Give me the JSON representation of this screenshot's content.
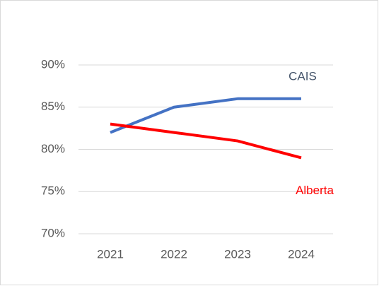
{
  "chart_data": {
    "type": "line",
    "categories": [
      "2021",
      "2022",
      "2023",
      "2024"
    ],
    "series": [
      {
        "name": "CAIS",
        "color": "#4472c4",
        "values": [
          82,
          85,
          86,
          86
        ]
      },
      {
        "name": "Alberta",
        "color": "#ff0000",
        "values": [
          83,
          82,
          81,
          79
        ]
      }
    ],
    "ylim": [
      70,
      90
    ],
    "yticks": [
      {
        "value": 70,
        "label": "70%"
      },
      {
        "value": 75,
        "label": "75%"
      },
      {
        "value": 80,
        "label": "80%"
      },
      {
        "value": 85,
        "label": "85%"
      },
      {
        "value": 90,
        "label": "90%"
      }
    ],
    "grid": true
  }
}
